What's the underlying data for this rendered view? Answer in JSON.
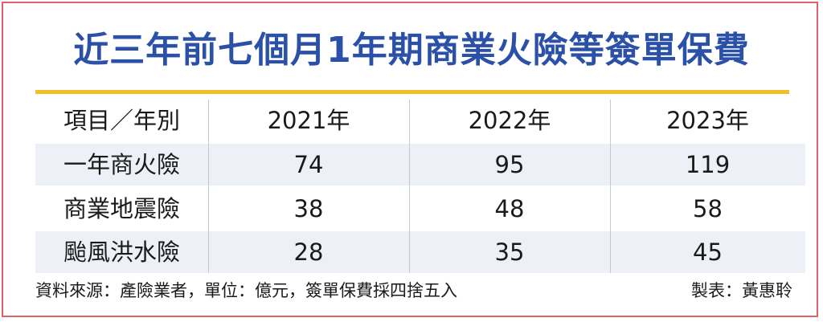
{
  "title": "近三年前七個月1年期商業火險等簽單保費",
  "chart_data": {
    "type": "table",
    "title": "近三年前七個月1年期商業火險等簽單保費",
    "columns": [
      "項目／年別",
      "2021年",
      "2022年",
      "2023年"
    ],
    "rows": [
      {
        "label": "一年商火險",
        "values": [
          "74",
          "95",
          "119"
        ]
      },
      {
        "label": "商業地震險",
        "values": [
          "38",
          "48",
          "58"
        ]
      },
      {
        "label": "颱風洪水險",
        "values": [
          "28",
          "35",
          "45"
        ]
      }
    ]
  },
  "footer": {
    "source": "資料來源：產險業者，單位：億元，簽單保費採四捨五入",
    "credit": "製表：黃惠聆"
  },
  "colors": {
    "title": "#2b50a8",
    "rule": "#f0c028",
    "row_shade": "#eef0f7",
    "border": "#e0606a"
  }
}
